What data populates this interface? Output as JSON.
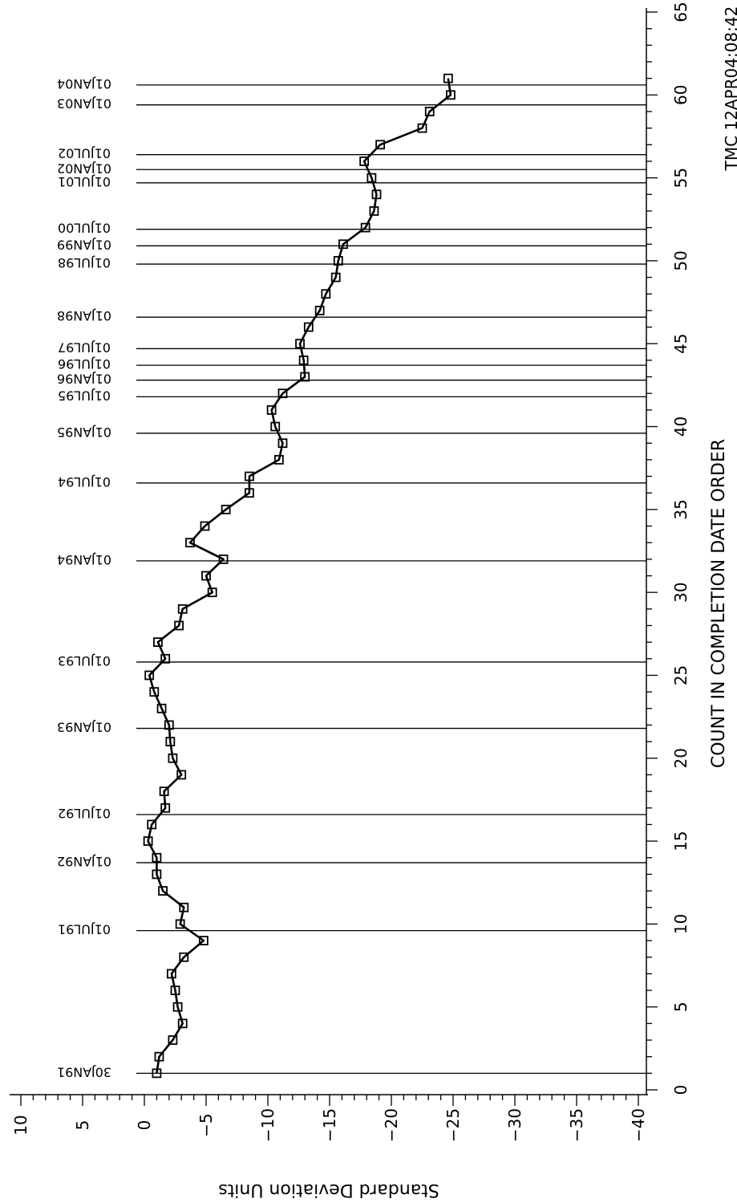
{
  "chart_data": {
    "type": "line",
    "title": "",
    "xlabel": "COUNT IN COMPLETION DATE ORDER",
    "ylabel": "Standard Deviation Units",
    "stamp": "TMC 12APR04:08:42",
    "xlim": [
      0,
      65
    ],
    "ylim": [
      -40,
      10
    ],
    "x_ticks": [
      0,
      5,
      10,
      15,
      20,
      25,
      30,
      35,
      40,
      45,
      50,
      55,
      60,
      65
    ],
    "y_ticks": [
      -40,
      -35,
      -30,
      -25,
      -20,
      -15,
      -10,
      -5,
      0,
      5,
      10
    ],
    "series": [
      {
        "marker": "square",
        "x": [
          1,
          2,
          3,
          4,
          5,
          6,
          7,
          8,
          9,
          10,
          11,
          12,
          13,
          14,
          15,
          16,
          17,
          18,
          19,
          20,
          21,
          22,
          23,
          24,
          25,
          26,
          27,
          28,
          29,
          30,
          31,
          32,
          33,
          34,
          35,
          36,
          37,
          38,
          39,
          40,
          41,
          42,
          43,
          44,
          45,
          46,
          47,
          48,
          49,
          50,
          51,
          52,
          53,
          54,
          55,
          56,
          57,
          58,
          59,
          60,
          61
        ],
        "y": [
          -1.0,
          -1.2,
          -2.3,
          -3.1,
          -2.7,
          -2.5,
          -2.2,
          -3.2,
          -4.8,
          -2.9,
          -3.2,
          -1.5,
          -1.0,
          -1.0,
          -0.3,
          -0.6,
          -1.7,
          -1.6,
          -3.0,
          -2.3,
          -2.1,
          -2.0,
          -1.4,
          -0.8,
          -0.4,
          -1.7,
          -1.1,
          -2.8,
          -3.1,
          -5.5,
          -5.0,
          -6.4,
          -3.7,
          -4.9,
          -6.6,
          -8.5,
          -8.5,
          -10.9,
          -11.2,
          -10.6,
          -10.3,
          -11.2,
          -13.0,
          -12.9,
          -12.6,
          -13.3,
          -14.2,
          -14.7,
          -15.5,
          -15.7,
          -16.1,
          -17.9,
          -18.6,
          -18.8,
          -18.4,
          -17.8,
          -19.1,
          -22.5,
          -23.1,
          -24.8,
          -24.6
        ]
      }
    ],
    "reference_lines": [
      {
        "x": 1,
        "label": "30JAN91"
      },
      {
        "x": 9.6,
        "label": "01JUL91"
      },
      {
        "x": 13.7,
        "label": "01JAN92"
      },
      {
        "x": 16.6,
        "label": "01JUL92"
      },
      {
        "x": 21.8,
        "label": "01JAN93"
      },
      {
        "x": 25.8,
        "label": "01JUL93"
      },
      {
        "x": 31.9,
        "label": "01JAN94"
      },
      {
        "x": 36.6,
        "label": "01JUL94"
      },
      {
        "x": 39.6,
        "label": "01JAN95"
      },
      {
        "x": 41.8,
        "label": "01JUL95"
      },
      {
        "x": 42.8,
        "label": "01JAN96"
      },
      {
        "x": 43.7,
        "label": "01JUL96"
      },
      {
        "x": 44.7,
        "label": "01JUL97"
      },
      {
        "x": 46.6,
        "label": "01JAN98"
      },
      {
        "x": 49.8,
        "label": "01JUL98"
      },
      {
        "x": 50.9,
        "label": "01JAN99"
      },
      {
        "x": 51.9,
        "label": "01JUL00"
      },
      {
        "x": 54.7,
        "label": "01JUL01"
      },
      {
        "x": 55.5,
        "label": "01JAN02"
      },
      {
        "x": 56.4,
        "label": "01JUL02"
      },
      {
        "x": 59.4,
        "label": "01JAN03"
      },
      {
        "x": 60.6,
        "label": "01JAN04"
      }
    ]
  }
}
